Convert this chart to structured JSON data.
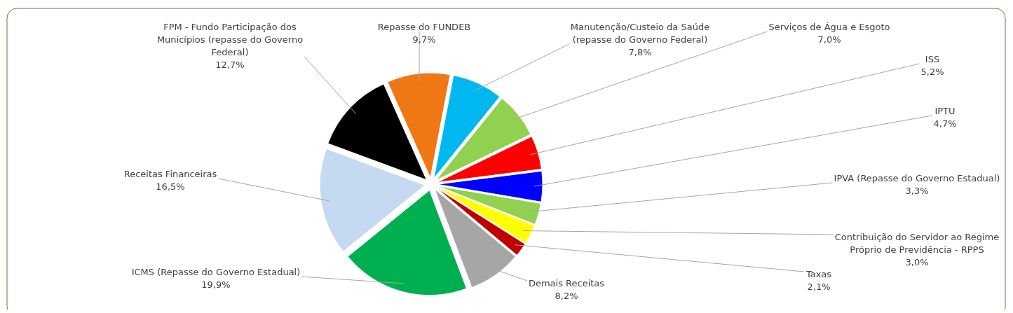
{
  "chart_data": {
    "type": "pie",
    "categories": [
      "Repasse do FUNDEB",
      "Manutenção/Custeio da Saúde (repasse do Governo Federal)",
      "Serviços de Água e Esgoto",
      "ISS",
      "IPTU",
      "IPVA (Repasse do Governo Estadual)",
      "Contribuição do Servidor ao Regime Próprio de Previdência - RPPS",
      "Taxas",
      "Demais Receitas",
      "ICMS (Repasse do Governo Estadual)",
      "Receitas Financeiras",
      "FPM - Fundo Participação dos Municípios (repasse do Governo Federal)"
    ],
    "values": [
      9.7,
      7.8,
      7.0,
      5.2,
      4.7,
      3.3,
      3.0,
      2.1,
      8.2,
      19.9,
      16.5,
      12.7
    ],
    "value_labels": [
      "9,7%",
      "7,8%",
      "7,0%",
      "5,2%",
      "4,7%",
      "3,3%",
      "3,0%",
      "2,1%",
      "8,2%",
      "19,9%",
      "16,5%",
      "12,7%"
    ],
    "colors": [
      "#f07814",
      "#00b8f0",
      "#92d050",
      "#ff0000",
      "#0000ff",
      "#92d050",
      "#ffff00",
      "#c00000",
      "#a6a6a6",
      "#00b050",
      "#c5d9f1",
      "#000000"
    ]
  }
}
